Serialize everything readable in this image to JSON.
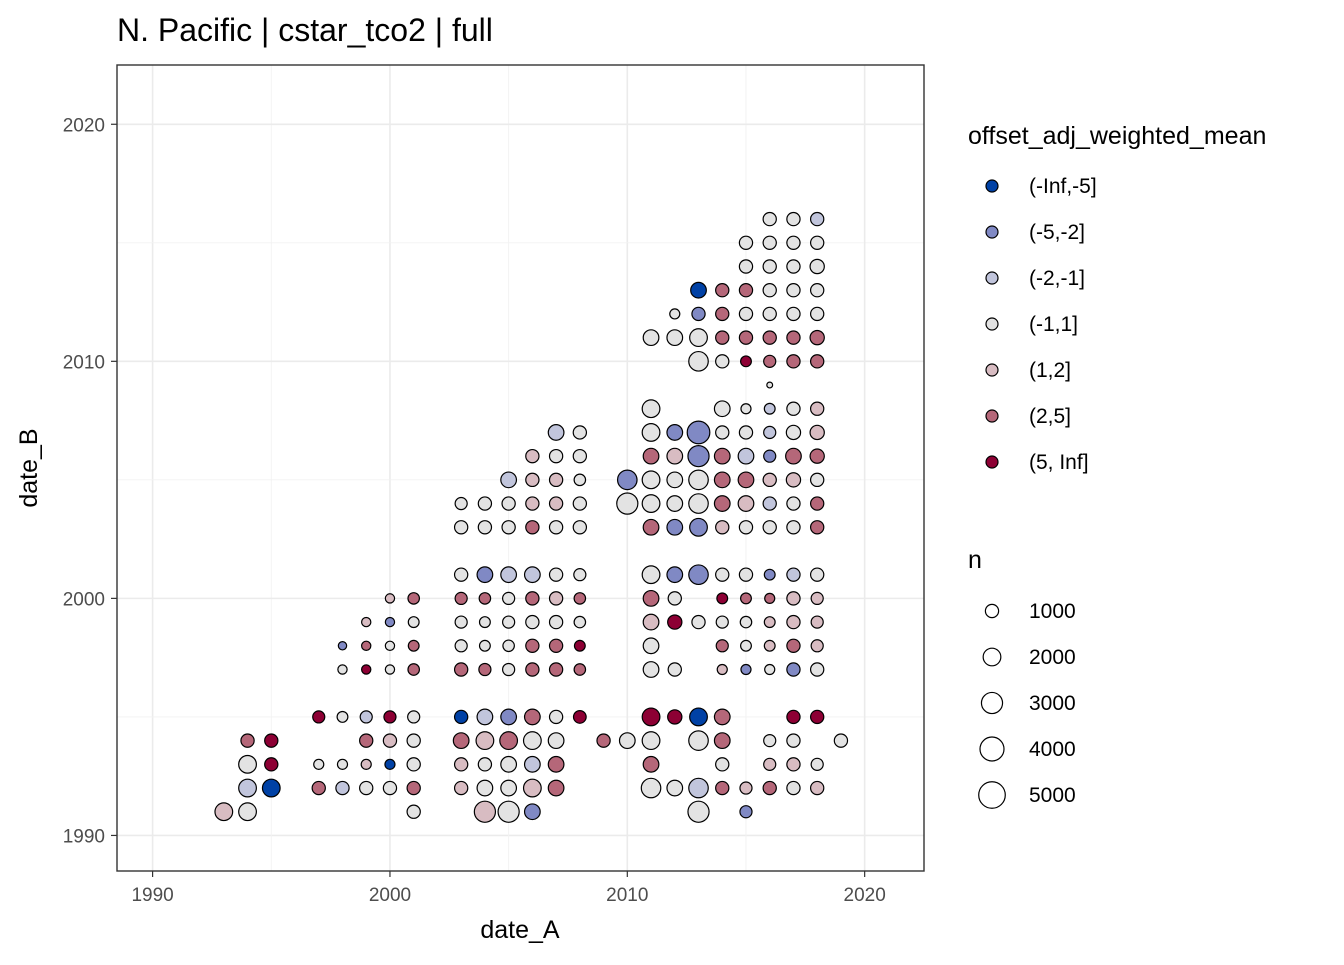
{
  "chart_data": {
    "type": "scatter",
    "title": "N. Pacific | cstar_tco2 | full",
    "xlabel": "date_A",
    "ylabel": "date_B",
    "xlim": [
      1988.5,
      2022.5
    ],
    "ylim": [
      1988.5,
      2022.5
    ],
    "x_ticks": [
      1990,
      2000,
      2010,
      2020
    ],
    "y_ticks": [
      1990,
      2000,
      2010,
      2020
    ],
    "grid": true,
    "legend_position": "right",
    "color_legend": {
      "title": "offset_adj_weighted_mean",
      "levels": [
        {
          "label": "(-Inf,-5]",
          "color": "#0041a5"
        },
        {
          "label": "(-5,-2]",
          "color": "#8089c4"
        },
        {
          "label": "(-2,-1]",
          "color": "#c1c5dc"
        },
        {
          "label": "(-1,1]",
          "color": "#e3e3e3"
        },
        {
          "label": "(1,2]",
          "color": "#d8bcc2"
        },
        {
          "label": "(2,5]",
          "color": "#b56779"
        },
        {
          "label": "(5, Inf]",
          "color": "#8d0034"
        }
      ]
    },
    "size_legend": {
      "title": "n",
      "breaks": [
        1000,
        2000,
        3000,
        4000,
        5000
      ]
    },
    "points": [
      [
        1993,
        1991,
        4,
        2000
      ],
      [
        1994,
        1991,
        3,
        2000
      ],
      [
        1994,
        1992,
        2,
        2000
      ],
      [
        1994,
        1993,
        3,
        2000
      ],
      [
        1994,
        1994,
        5,
        1000
      ],
      [
        1995,
        1992,
        0,
        2000
      ],
      [
        1995,
        1993,
        6,
        1000
      ],
      [
        1995,
        1994,
        6,
        1000
      ],
      [
        1997,
        1992,
        5,
        1000
      ],
      [
        1997,
        1993,
        3,
        500
      ],
      [
        1997,
        1995,
        6,
        800
      ],
      [
        1998,
        1992,
        2,
        1000
      ],
      [
        1998,
        1993,
        3,
        500
      ],
      [
        1998,
        1995,
        3,
        600
      ],
      [
        1998,
        1997,
        3,
        400
      ],
      [
        1998,
        1998,
        1,
        300
      ],
      [
        1999,
        1992,
        3,
        1000
      ],
      [
        1999,
        1993,
        4,
        500
      ],
      [
        1999,
        1994,
        5,
        1000
      ],
      [
        1999,
        1995,
        2,
        800
      ],
      [
        1999,
        1997,
        6,
        400
      ],
      [
        1999,
        1998,
        5,
        400
      ],
      [
        1999,
        1999,
        4,
        400
      ],
      [
        2000,
        1992,
        3,
        1000
      ],
      [
        2000,
        1993,
        0,
        500
      ],
      [
        2000,
        1994,
        4,
        1000
      ],
      [
        2000,
        1995,
        6,
        800
      ],
      [
        2000,
        1997,
        3,
        400
      ],
      [
        2000,
        1998,
        3,
        400
      ],
      [
        2000,
        1999,
        1,
        400
      ],
      [
        2000,
        2000,
        4,
        400
      ],
      [
        2001,
        1991,
        3,
        1000
      ],
      [
        2001,
        1992,
        5,
        1000
      ],
      [
        2001,
        1993,
        3,
        1000
      ],
      [
        2001,
        1994,
        3,
        1000
      ],
      [
        2001,
        1995,
        3,
        800
      ],
      [
        2001,
        1997,
        5,
        700
      ],
      [
        2001,
        1998,
        5,
        600
      ],
      [
        2001,
        1999,
        3,
        600
      ],
      [
        2001,
        2000,
        5,
        700
      ],
      [
        2003,
        1992,
        4,
        1000
      ],
      [
        2003,
        1993,
        4,
        1000
      ],
      [
        2003,
        1994,
        5,
        1500
      ],
      [
        2003,
        1995,
        0,
        1000
      ],
      [
        2003,
        1997,
        5,
        1000
      ],
      [
        2003,
        1998,
        3,
        800
      ],
      [
        2003,
        1999,
        3,
        800
      ],
      [
        2003,
        2000,
        5,
        800
      ],
      [
        2003,
        2001,
        3,
        1000
      ],
      [
        2003,
        2003,
        3,
        1000
      ],
      [
        2003,
        2004,
        3,
        800
      ],
      [
        2004,
        1991,
        4,
        3000
      ],
      [
        2004,
        1992,
        3,
        1500
      ],
      [
        2004,
        1993,
        3,
        1000
      ],
      [
        2004,
        1994,
        4,
        2000
      ],
      [
        2004,
        1995,
        2,
        1500
      ],
      [
        2004,
        1997,
        5,
        800
      ],
      [
        2004,
        1998,
        3,
        600
      ],
      [
        2004,
        1999,
        3,
        600
      ],
      [
        2004,
        2000,
        5,
        700
      ],
      [
        2004,
        2001,
        1,
        1500
      ],
      [
        2004,
        2003,
        3,
        1000
      ],
      [
        2004,
        2004,
        3,
        1000
      ],
      [
        2005,
        1991,
        3,
        3000
      ],
      [
        2005,
        1992,
        3,
        1500
      ],
      [
        2005,
        1993,
        3,
        1500
      ],
      [
        2005,
        1994,
        5,
        2000
      ],
      [
        2005,
        1995,
        1,
        1500
      ],
      [
        2005,
        1997,
        3,
        800
      ],
      [
        2005,
        1998,
        3,
        700
      ],
      [
        2005,
        1999,
        3,
        800
      ],
      [
        2005,
        2000,
        3,
        800
      ],
      [
        2005,
        2001,
        2,
        1500
      ],
      [
        2005,
        2003,
        3,
        1000
      ],
      [
        2005,
        2004,
        3,
        1000
      ],
      [
        2005,
        2005,
        2,
        1500
      ],
      [
        2006,
        1991,
        1,
        1500
      ],
      [
        2006,
        1992,
        4,
        2000
      ],
      [
        2006,
        1993,
        2,
        1500
      ],
      [
        2006,
        1994,
        3,
        2000
      ],
      [
        2006,
        1995,
        5,
        1500
      ],
      [
        2006,
        1997,
        5,
        1000
      ],
      [
        2006,
        1998,
        5,
        1000
      ],
      [
        2006,
        1999,
        3,
        1000
      ],
      [
        2006,
        2000,
        5,
        1000
      ],
      [
        2006,
        2001,
        2,
        1500
      ],
      [
        2006,
        2003,
        5,
        1000
      ],
      [
        2006,
        2004,
        4,
        1000
      ],
      [
        2006,
        2005,
        4,
        1000
      ],
      [
        2006,
        2006,
        4,
        1000
      ],
      [
        2007,
        1992,
        5,
        1500
      ],
      [
        2007,
        1993,
        5,
        1500
      ],
      [
        2007,
        1994,
        3,
        1500
      ],
      [
        2007,
        1995,
        3,
        1000
      ],
      [
        2007,
        1997,
        5,
        1000
      ],
      [
        2007,
        1998,
        5,
        1000
      ],
      [
        2007,
        1999,
        3,
        1000
      ],
      [
        2007,
        2000,
        4,
        1000
      ],
      [
        2007,
        2001,
        3,
        1000
      ],
      [
        2007,
        2003,
        3,
        1000
      ],
      [
        2007,
        2004,
        4,
        1000
      ],
      [
        2007,
        2005,
        4,
        1000
      ],
      [
        2007,
        2006,
        3,
        1000
      ],
      [
        2007,
        2007,
        2,
        1500
      ],
      [
        2008,
        1995,
        6,
        900
      ],
      [
        2008,
        1997,
        5,
        700
      ],
      [
        2008,
        1998,
        6,
        600
      ],
      [
        2008,
        1999,
        3,
        700
      ],
      [
        2008,
        2000,
        5,
        700
      ],
      [
        2008,
        2001,
        3,
        800
      ],
      [
        2008,
        2003,
        3,
        1000
      ],
      [
        2008,
        2004,
        3,
        1000
      ],
      [
        2008,
        2005,
        3,
        700
      ],
      [
        2008,
        2006,
        3,
        1000
      ],
      [
        2008,
        2007,
        3,
        1000
      ],
      [
        2009,
        1994,
        5,
        1000
      ],
      [
        2010,
        1994,
        3,
        1500
      ],
      [
        2010,
        2004,
        3,
        3000
      ],
      [
        2010,
        2005,
        1,
        2500
      ],
      [
        2011,
        1992,
        3,
        2500
      ],
      [
        2011,
        1993,
        5,
        1500
      ],
      [
        2011,
        1994,
        3,
        2000
      ],
      [
        2011,
        1995,
        6,
        2000
      ],
      [
        2011,
        1997,
        3,
        1500
      ],
      [
        2011,
        1998,
        3,
        1500
      ],
      [
        2011,
        1999,
        4,
        1500
      ],
      [
        2011,
        2000,
        5,
        1500
      ],
      [
        2011,
        2001,
        3,
        2000
      ],
      [
        2011,
        2003,
        5,
        1500
      ],
      [
        2011,
        2004,
        3,
        2000
      ],
      [
        2011,
        2005,
        3,
        2000
      ],
      [
        2011,
        2006,
        5,
        1500
      ],
      [
        2011,
        2007,
        3,
        2000
      ],
      [
        2011,
        2008,
        3,
        2000
      ],
      [
        2011,
        2011,
        3,
        1500
      ],
      [
        2012,
        1992,
        3,
        1500
      ],
      [
        2012,
        1995,
        6,
        1200
      ],
      [
        2012,
        1997,
        3,
        1000
      ],
      [
        2012,
        1999,
        6,
        1200
      ],
      [
        2012,
        2000,
        3,
        1000
      ],
      [
        2012,
        2001,
        1,
        1500
      ],
      [
        2012,
        2003,
        1,
        1500
      ],
      [
        2012,
        2004,
        3,
        1500
      ],
      [
        2012,
        2005,
        3,
        1500
      ],
      [
        2012,
        2006,
        4,
        1500
      ],
      [
        2012,
        2007,
        1,
        1500
      ],
      [
        2012,
        2011,
        3,
        1500
      ],
      [
        2012,
        2012,
        3,
        500
      ],
      [
        2013,
        1991,
        3,
        3000
      ],
      [
        2013,
        1992,
        2,
        2500
      ],
      [
        2013,
        1994,
        3,
        2500
      ],
      [
        2013,
        1995,
        0,
        2000
      ],
      [
        2013,
        1999,
        3,
        1000
      ],
      [
        2013,
        2001,
        1,
        2500
      ],
      [
        2013,
        2003,
        1,
        2000
      ],
      [
        2013,
        2004,
        3,
        2500
      ],
      [
        2013,
        2005,
        3,
        2500
      ],
      [
        2013,
        2006,
        1,
        3000
      ],
      [
        2013,
        2007,
        1,
        3500
      ],
      [
        2013,
        2010,
        3,
        2500
      ],
      [
        2013,
        2011,
        3,
        2000
      ],
      [
        2013,
        2012,
        1,
        1000
      ],
      [
        2013,
        2013,
        0,
        1500
      ],
      [
        2014,
        1992,
        5,
        1000
      ],
      [
        2014,
        1993,
        3,
        1000
      ],
      [
        2014,
        1994,
        5,
        1500
      ],
      [
        2014,
        1995,
        5,
        1500
      ],
      [
        2014,
        1997,
        4,
        500
      ],
      [
        2014,
        1998,
        5,
        800
      ],
      [
        2014,
        1999,
        3,
        800
      ],
      [
        2014,
        2000,
        6,
        600
      ],
      [
        2014,
        2001,
        3,
        1000
      ],
      [
        2014,
        2003,
        4,
        1000
      ],
      [
        2014,
        2004,
        5,
        1500
      ],
      [
        2014,
        2005,
        5,
        1500
      ],
      [
        2014,
        2006,
        5,
        1500
      ],
      [
        2014,
        2007,
        3,
        1000
      ],
      [
        2014,
        2008,
        3,
        1500
      ],
      [
        2014,
        2010,
        3,
        1000
      ],
      [
        2014,
        2011,
        5,
        1000
      ],
      [
        2014,
        2012,
        5,
        1000
      ],
      [
        2014,
        2013,
        5,
        1000
      ],
      [
        2015,
        1991,
        1,
        800
      ],
      [
        2015,
        1992,
        4,
        800
      ],
      [
        2015,
        1997,
        1,
        500
      ],
      [
        2015,
        1998,
        3,
        600
      ],
      [
        2015,
        1999,
        3,
        700
      ],
      [
        2015,
        2000,
        5,
        600
      ],
      [
        2015,
        2001,
        3,
        1000
      ],
      [
        2015,
        2003,
        3,
        1000
      ],
      [
        2015,
        2004,
        4,
        1500
      ],
      [
        2015,
        2005,
        5,
        1500
      ],
      [
        2015,
        2006,
        2,
        1500
      ],
      [
        2015,
        2007,
        3,
        1000
      ],
      [
        2015,
        2008,
        3,
        500
      ],
      [
        2015,
        2010,
        6,
        600
      ],
      [
        2015,
        2011,
        5,
        1000
      ],
      [
        2015,
        2012,
        3,
        1000
      ],
      [
        2015,
        2013,
        5,
        1000
      ],
      [
        2015,
        2014,
        3,
        1000
      ],
      [
        2015,
        2015,
        3,
        1000
      ],
      [
        2016,
        1992,
        5,
        1000
      ],
      [
        2016,
        1993,
        4,
        800
      ],
      [
        2016,
        1994,
        3,
        800
      ],
      [
        2016,
        1997,
        3,
        500
      ],
      [
        2016,
        1998,
        4,
        600
      ],
      [
        2016,
        1999,
        4,
        600
      ],
      [
        2016,
        2000,
        5,
        500
      ],
      [
        2016,
        2001,
        1,
        600
      ],
      [
        2016,
        2003,
        3,
        1000
      ],
      [
        2016,
        2004,
        2,
        1000
      ],
      [
        2016,
        2005,
        4,
        1000
      ],
      [
        2016,
        2006,
        1,
        800
      ],
      [
        2016,
        2007,
        2,
        800
      ],
      [
        2016,
        2008,
        2,
        600
      ],
      [
        2016,
        2009,
        3,
        100
      ],
      [
        2016,
        2010,
        5,
        800
      ],
      [
        2016,
        2011,
        5,
        1000
      ],
      [
        2016,
        2012,
        3,
        1000
      ],
      [
        2016,
        2013,
        3,
        1000
      ],
      [
        2016,
        2014,
        3,
        1000
      ],
      [
        2016,
        2015,
        3,
        1000
      ],
      [
        2016,
        2016,
        3,
        1000
      ],
      [
        2017,
        1992,
        3,
        1000
      ],
      [
        2017,
        1993,
        4,
        1000
      ],
      [
        2017,
        1994,
        3,
        1000
      ],
      [
        2017,
        1995,
        6,
        1000
      ],
      [
        2017,
        1997,
        1,
        1000
      ],
      [
        2017,
        1998,
        5,
        1000
      ],
      [
        2017,
        1999,
        4,
        1000
      ],
      [
        2017,
        2000,
        4,
        1000
      ],
      [
        2017,
        2001,
        2,
        1000
      ],
      [
        2017,
        2003,
        3,
        1000
      ],
      [
        2017,
        2004,
        3,
        1000
      ],
      [
        2017,
        2005,
        4,
        1200
      ],
      [
        2017,
        2006,
        5,
        1500
      ],
      [
        2017,
        2007,
        3,
        1200
      ],
      [
        2017,
        2008,
        3,
        1000
      ],
      [
        2017,
        2010,
        5,
        1000
      ],
      [
        2017,
        2011,
        5,
        1000
      ],
      [
        2017,
        2012,
        3,
        1000
      ],
      [
        2017,
        2013,
        3,
        1000
      ],
      [
        2017,
        2014,
        3,
        1000
      ],
      [
        2017,
        2015,
        3,
        1000
      ],
      [
        2017,
        2016,
        3,
        1000
      ],
      [
        2018,
        1992,
        4,
        1000
      ],
      [
        2018,
        1993,
        3,
        800
      ],
      [
        2018,
        1995,
        6,
        1000
      ],
      [
        2018,
        1997,
        3,
        1000
      ],
      [
        2018,
        1998,
        4,
        800
      ],
      [
        2018,
        1999,
        4,
        800
      ],
      [
        2018,
        2000,
        4,
        800
      ],
      [
        2018,
        2001,
        3,
        1000
      ],
      [
        2018,
        2003,
        5,
        1000
      ],
      [
        2018,
        2004,
        5,
        1000
      ],
      [
        2018,
        2005,
        3,
        1000
      ],
      [
        2018,
        2006,
        5,
        1200
      ],
      [
        2018,
        2007,
        4,
        1200
      ],
      [
        2018,
        2008,
        4,
        1000
      ],
      [
        2018,
        2010,
        5,
        1000
      ],
      [
        2018,
        2011,
        5,
        1200
      ],
      [
        2018,
        2012,
        3,
        1000
      ],
      [
        2018,
        2013,
        3,
        1000
      ],
      [
        2018,
        2014,
        3,
        1200
      ],
      [
        2018,
        2015,
        3,
        1000
      ],
      [
        2018,
        2016,
        2,
        1000
      ],
      [
        2019,
        1994,
        3,
        1000
      ]
    ]
  }
}
